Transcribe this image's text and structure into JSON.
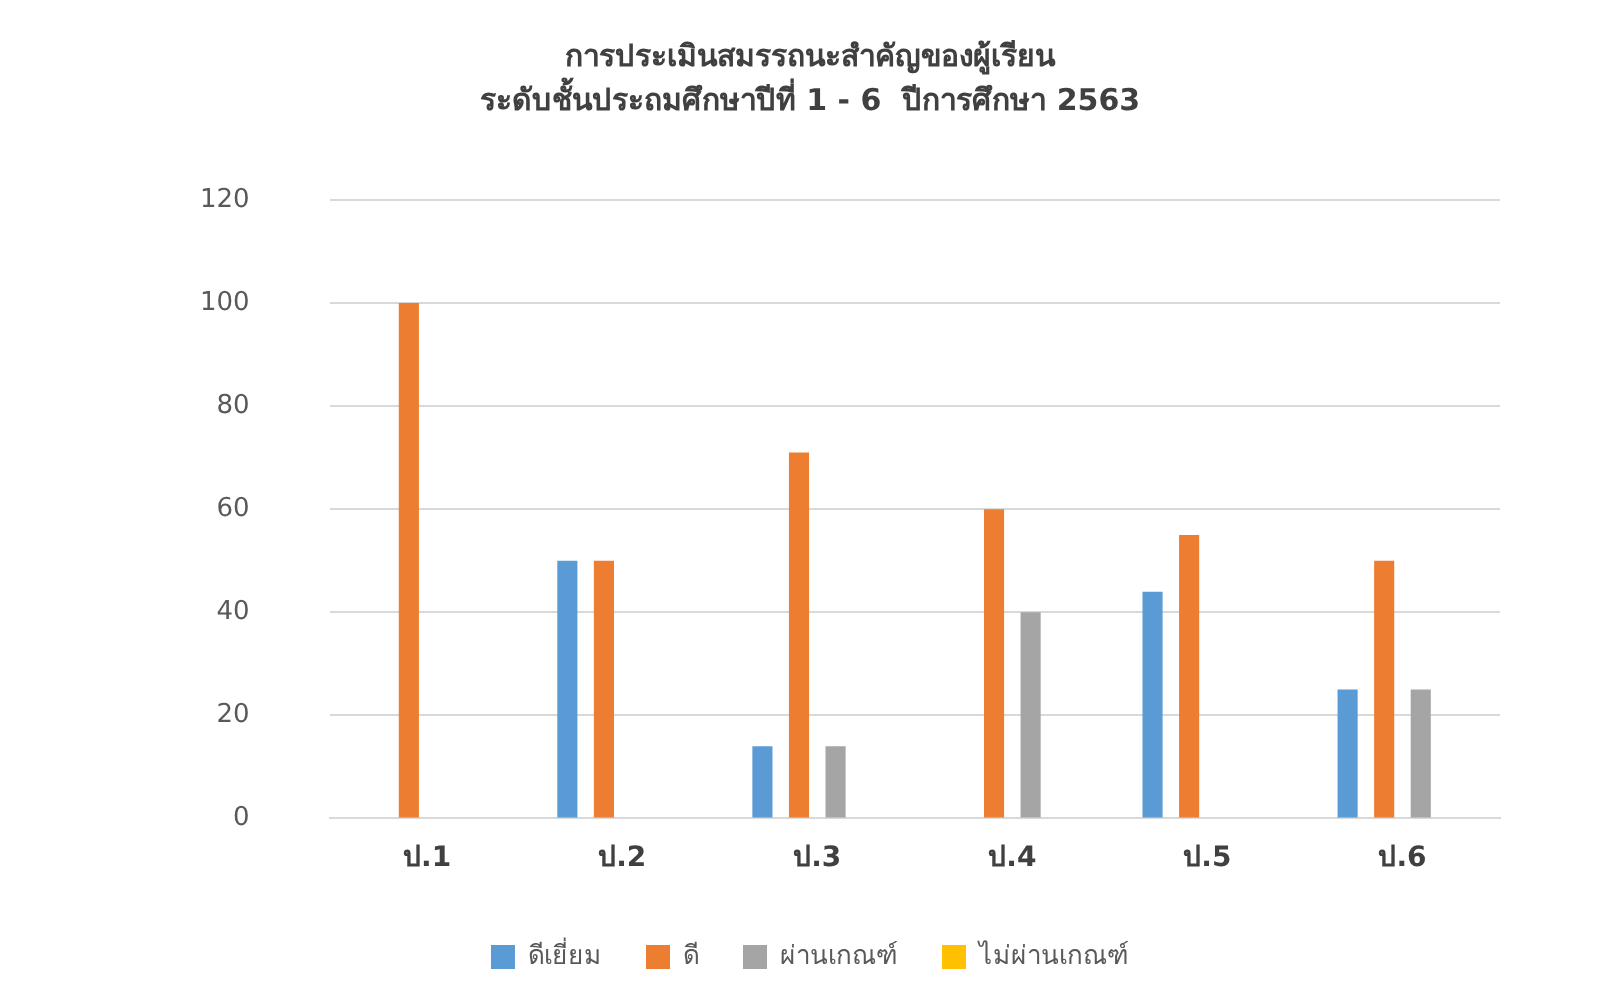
{
  "chart_data": {
    "type": "bar",
    "title": "การประเมินสมรรถนะสำคัญของผู้เรียน",
    "subtitle": "ระดับชั้นประถมศึกษาปีที่ 1 - 6  ปีการศึกษา 2563",
    "categories": [
      "ป.1",
      "ป.2",
      "ป.3",
      "ป.4",
      "ป.5",
      "ป.6"
    ],
    "series": [
      {
        "name": "ดีเยี่ยม",
        "color": "#5b9bd5",
        "values": [
          0,
          50,
          14,
          0,
          44,
          25
        ]
      },
      {
        "name": "ดี",
        "color": "#ed7d31",
        "values": [
          100,
          50,
          71,
          60,
          55,
          50
        ]
      },
      {
        "name": "ผ่านเกณฑ์",
        "color": "#a5a5a5",
        "values": [
          0,
          0,
          14,
          40,
          0,
          25
        ]
      },
      {
        "name": "ไม่ผ่านเกณฑ์",
        "color": "#ffc000",
        "values": [
          0,
          0,
          0,
          0,
          0,
          0
        ]
      }
    ],
    "ylim": [
      0,
      120
    ],
    "yticks": [
      0,
      20,
      40,
      60,
      80,
      100,
      120
    ],
    "grid": "y",
    "legend": "bottom"
  }
}
